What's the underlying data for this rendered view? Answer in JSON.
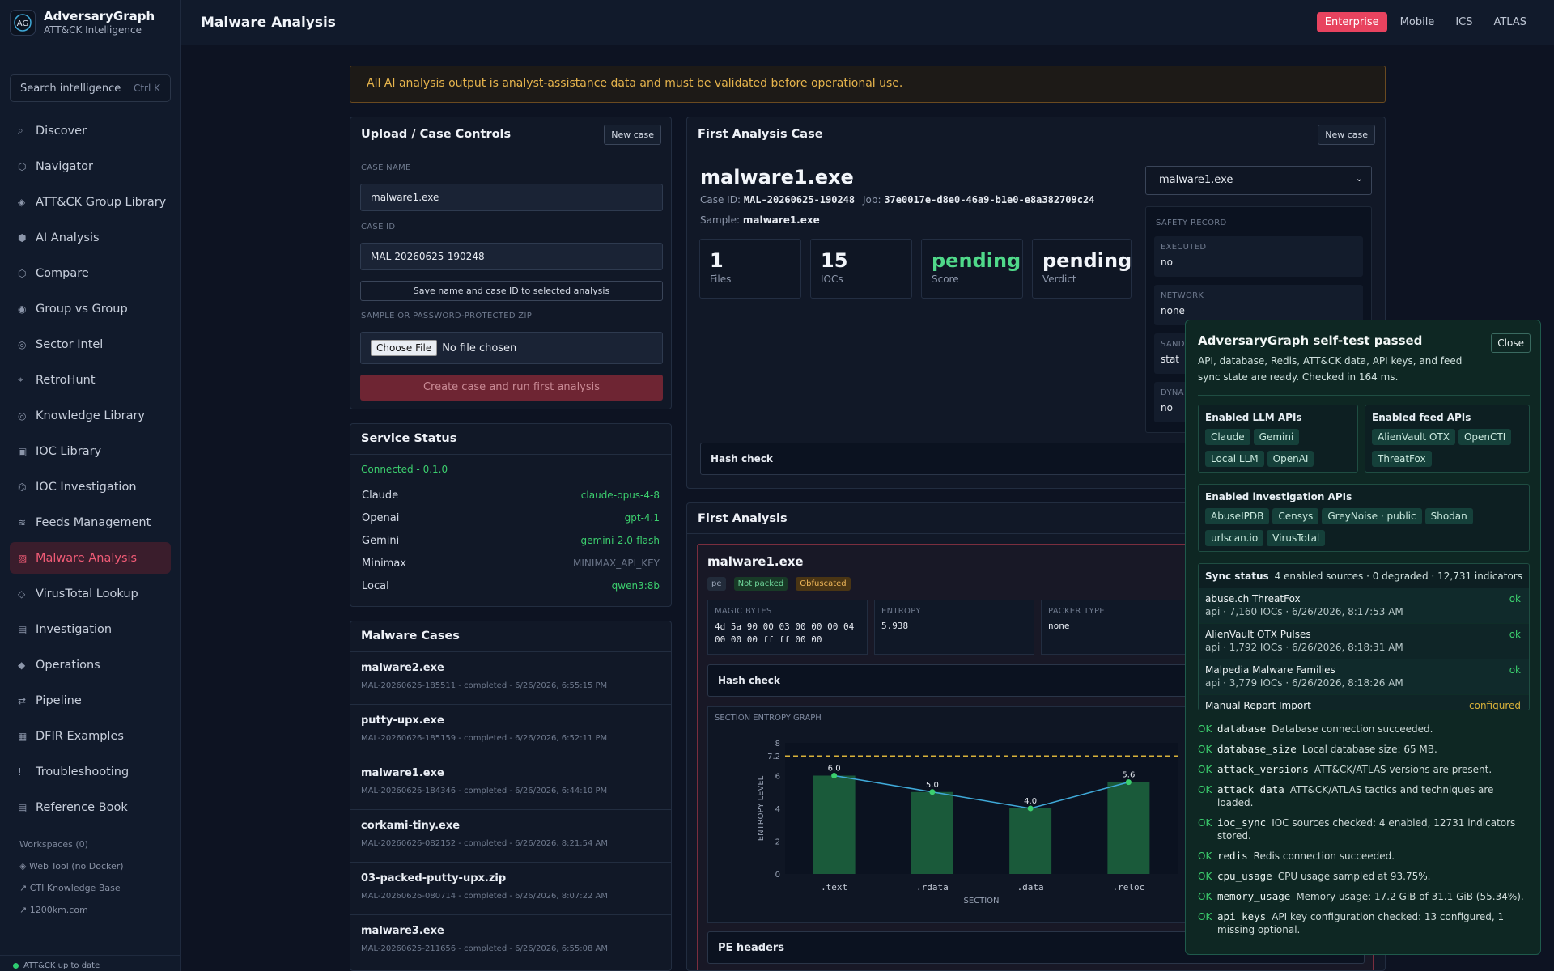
{
  "brand": {
    "name": "AdversaryGraph",
    "subtitle": "ATT&CK Intelligence",
    "logo_text": "AG"
  },
  "search": {
    "placeholder": "Search intelligence",
    "shortcut": "Ctrl K"
  },
  "sidebar": {
    "items": [
      {
        "icon": "⌕",
        "label": "Discover"
      },
      {
        "icon": "⬡",
        "label": "Navigator"
      },
      {
        "icon": "◈",
        "label": "ATT&CK Group Library"
      },
      {
        "icon": "⬢",
        "label": "AI Analysis"
      },
      {
        "icon": "⬡",
        "label": "Compare"
      },
      {
        "icon": "◉",
        "label": "Group vs Group"
      },
      {
        "icon": "◎",
        "label": "Sector Intel"
      },
      {
        "icon": "⌖",
        "label": "RetroHunt"
      },
      {
        "icon": "◎",
        "label": "Knowledge Library"
      },
      {
        "icon": "▣",
        "label": "IOC Library"
      },
      {
        "icon": "⌬",
        "label": "IOC Investigation"
      },
      {
        "icon": "≋",
        "label": "Feeds Management"
      },
      {
        "icon": "▨",
        "label": "Malware Analysis"
      },
      {
        "icon": "◇",
        "label": "VirusTotal Lookup"
      },
      {
        "icon": "▤",
        "label": "Investigation"
      },
      {
        "icon": "◆",
        "label": "Operations"
      },
      {
        "icon": "⇄",
        "label": "Pipeline"
      },
      {
        "icon": "▦",
        "label": "DFIR Examples"
      },
      {
        "icon": "!",
        "label": "Troubleshooting"
      },
      {
        "icon": "▤",
        "label": "Reference Book"
      }
    ],
    "workspaces_label": "Workspaces (0)",
    "links": [
      "◈ Web Tool (no Docker)",
      "↗ CTI Knowledge Base",
      "↗ 1200km.com"
    ],
    "footer": "ATT&CK up to date"
  },
  "topbar": {
    "title": "Malware Analysis",
    "tabs": [
      "Enterprise",
      "Mobile",
      "ICS",
      "ATLAS"
    ]
  },
  "banner": "All AI analysis output is analyst-assistance data and must be validated before operational use.",
  "upload": {
    "title": "Upload / Case Controls",
    "new_case": "New case",
    "case_name_label": "Case name",
    "case_name_value": "malware1.exe",
    "case_id_label": "Case ID",
    "case_id_value": "MAL-20260625-190248",
    "save_button": "Save name and case ID to selected analysis",
    "sample_label": "Sample or password-protected ZIP",
    "choose_file": "Choose File",
    "no_file": "No file chosen",
    "create_button": "Create case and run first analysis"
  },
  "service": {
    "title": "Service Status",
    "connected": "Connected - 0.1.0",
    "rows": [
      {
        "name": "Claude",
        "value": "claude-opus-4-8",
        "ok": true
      },
      {
        "name": "Openai",
        "value": "gpt-4.1",
        "ok": true
      },
      {
        "name": "Gemini",
        "value": "gemini-2.0-flash",
        "ok": true
      },
      {
        "name": "Minimax",
        "value": "MINIMAX_API_KEY",
        "ok": false
      },
      {
        "name": "Local",
        "value": "qwen3:8b",
        "ok": true
      }
    ]
  },
  "cases": {
    "title": "Malware Cases",
    "items": [
      {
        "name": "malware2.exe",
        "meta": "MAL-20260626-185511 - completed - 6/26/2026, 6:55:15 PM"
      },
      {
        "name": "putty-upx.exe",
        "meta": "MAL-20260626-185159 - completed - 6/26/2026, 6:52:11 PM"
      },
      {
        "name": "malware1.exe",
        "meta": "MAL-20260626-184346 - completed - 6/26/2026, 6:44:10 PM"
      },
      {
        "name": "corkami-tiny.exe",
        "meta": "MAL-20260626-082152 - completed - 6/26/2026, 8:21:54 AM"
      },
      {
        "name": "03-packed-putty-upx.zip",
        "meta": "MAL-20260626-080714 - completed - 6/26/2026, 8:07:22 AM"
      },
      {
        "name": "malware3.exe",
        "meta": "MAL-20260625-211656 - completed - 6/26/2026, 6:55:08 AM"
      }
    ]
  },
  "first_case": {
    "title": "First Analysis Case",
    "new_case": "New case",
    "file_name": "malware1.exe",
    "case_id_label": "Case ID:",
    "case_id": "MAL-20260625-190248",
    "job_label": "Job:",
    "job": "37e0017e-d8e0-46a9-b1e0-e8a382709c24",
    "sample_label": "Sample:",
    "sample": "malware1.exe",
    "select_value": "malware1.exe",
    "stats": [
      {
        "n": "1",
        "s": "Files",
        "green": false
      },
      {
        "n": "15",
        "s": "IOCs",
        "green": false
      },
      {
        "n": "pending",
        "s": "Score",
        "green": true
      },
      {
        "n": "pending",
        "s": "Verdict",
        "green": false
      }
    ],
    "safety": {
      "title": "Safety record",
      "items": [
        {
          "label": "Executed",
          "value": "no"
        },
        {
          "label": "Network",
          "value": "none"
        },
        {
          "label": "Sand",
          "value": "stat"
        },
        {
          "label": "Dyna",
          "value": "no"
        }
      ]
    },
    "hash_check": "Hash check"
  },
  "first_analysis": {
    "title": "First Analysis",
    "file": "malware1.exe",
    "pills": [
      "pe",
      "Not packed",
      "Obfuscated"
    ],
    "meta": [
      {
        "label": "Magic bytes",
        "value": "4d 5a 90 00 03 00 00 00 04 00 00 00 ff ff 00 00"
      },
      {
        "label": "Entropy",
        "value": "5.938"
      },
      {
        "label": "Packer type",
        "value": "none"
      }
    ],
    "hash_check": "Hash check",
    "pe_headers": "PE headers"
  },
  "chart_data": {
    "type": "bar",
    "title": "Section entropy graph",
    "xlabel": "SECTION",
    "ylabel": "ENTROPY LEVEL",
    "categories": [
      ".text",
      ".rdata",
      ".data",
      ".reloc"
    ],
    "values": [
      6.0,
      5.0,
      4.0,
      5.6
    ],
    "value_labels": [
      "6.0",
      "5.0",
      "4.0",
      "5.6"
    ],
    "yticks": [
      "0",
      "2",
      "4",
      "6",
      "7.2",
      "8"
    ],
    "ylim": [
      0,
      8
    ],
    "threshold": 7.2,
    "colors": {
      "bar": "#1a5a3a",
      "line": "#3fa9d8",
      "point": "#3ccf6e",
      "threshold": "#d9b23a"
    }
  },
  "selftest": {
    "title": "AdversaryGraph self-test passed",
    "close": "Close",
    "desc": "API, database, Redis, ATT&CK data, API keys, and feed sync state are ready. Checked in 164 ms.",
    "llm_title": "Enabled LLM APIs",
    "llm": [
      "Claude",
      "Gemini",
      "Local LLM",
      "OpenAI"
    ],
    "feed_title": "Enabled feed APIs",
    "feeds": [
      "AlienVault OTX",
      "OpenCTI",
      "ThreatFox"
    ],
    "inv_title": "Enabled investigation APIs",
    "inv": [
      "AbuseIPDB",
      "Censys",
      "GreyNoise · public",
      "Shodan",
      "urlscan.io",
      "VirusTotal"
    ],
    "sync_title": "Sync status",
    "sync_summary": "4 enabled sources · 0 degraded · 12,731 indicators",
    "sync": [
      {
        "name": "abuse.ch ThreatFox",
        "meta": "api · 7,160 IOCs · 6/26/2026, 8:17:53 AM",
        "status": "ok"
      },
      {
        "name": "AlienVault OTX Pulses",
        "meta": "api · 1,792 IOCs · 6/26/2026, 8:18:31 AM",
        "status": "ok"
      },
      {
        "name": "Malpedia Malware Families",
        "meta": "api · 3,779 IOCs · 6/26/2026, 8:18:26 AM",
        "status": "ok"
      },
      {
        "name": "Manual Report Import",
        "meta": "",
        "status": "configured"
      }
    ],
    "checks": [
      {
        "key": "database",
        "text": "Database connection succeeded."
      },
      {
        "key": "database_size",
        "text": "Local database size: 65 MB."
      },
      {
        "key": "attack_versions",
        "text": "ATT&CK/ATLAS versions are present."
      },
      {
        "key": "attack_data",
        "text": "ATT&CK/ATLAS tactics and techniques are loaded."
      },
      {
        "key": "ioc_sync",
        "text": "IOC sources checked: 4 enabled, 12731 indicators stored."
      },
      {
        "key": "redis",
        "text": "Redis connection succeeded."
      },
      {
        "key": "cpu_usage",
        "text": "CPU usage sampled at 93.75%."
      },
      {
        "key": "memory_usage",
        "text": "Memory usage: 17.2 GiB of 31.1 GiB (55.34%)."
      },
      {
        "key": "api_keys",
        "text": "API key configuration checked: 13 configured, 1 missing optional."
      }
    ],
    "ok_label": "OK"
  }
}
